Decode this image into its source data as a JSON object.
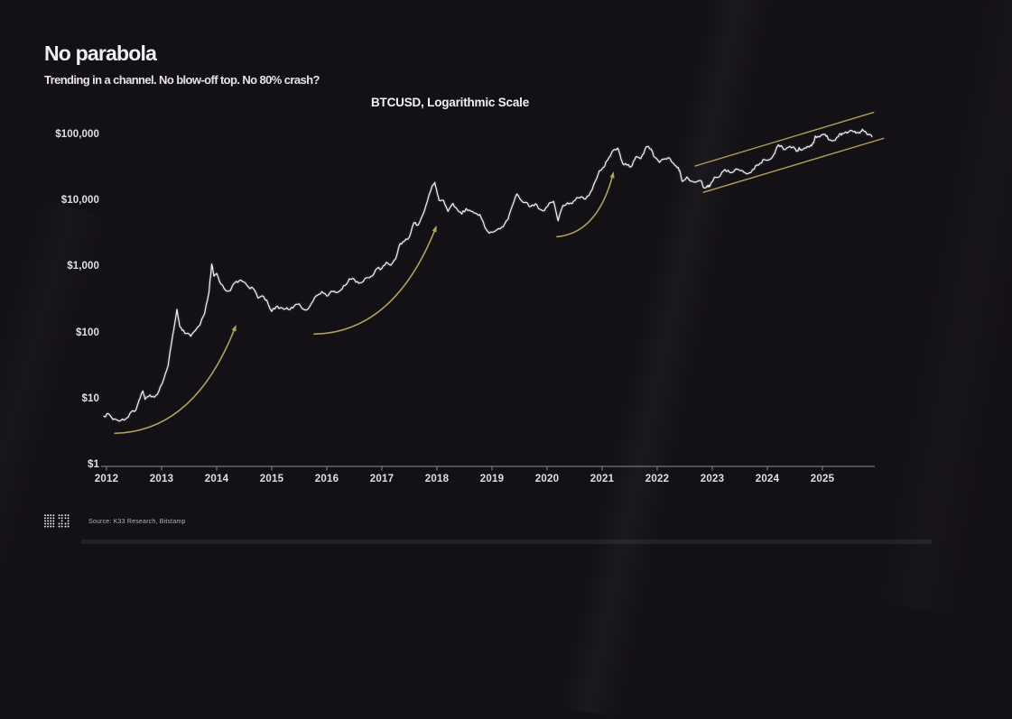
{
  "slide": {
    "title": "No parabola",
    "subtitle": "Trending in a channel. No blow-off top. No 80% crash?",
    "source": "Source: K33 Research, Bitstamp"
  },
  "colors": {
    "background": "#131016",
    "accent_gold": "#b2a158",
    "price_line": "#f4f2f4",
    "axis": "#8f8c90",
    "label_text": "#e2dfe2"
  },
  "chart_data": {
    "type": "line",
    "title": "BTCUSD, Logarithmic Scale",
    "xlabel": "",
    "ylabel": "",
    "x_axis": {
      "ticks": [
        2012,
        2013,
        2014,
        2015,
        2016,
        2017,
        2018,
        2019,
        2020,
        2021,
        2022,
        2023,
        2024,
        2025
      ],
      "range": [
        2011.9,
        2025.95
      ]
    },
    "y_axis": {
      "scale": "log",
      "tick_values": [
        1,
        10,
        100,
        1000,
        10000,
        100000
      ],
      "tick_labels": [
        "$1",
        "$10",
        "$100",
        "$1,000",
        "$10,000",
        "$100,000"
      ],
      "range": [
        1,
        160000
      ]
    },
    "grid": false,
    "legend": "none",
    "series": [
      {
        "name": "BTCUSD",
        "points": [
          [
            2011.95,
            5.6
          ],
          [
            2012.04,
            6.1
          ],
          [
            2012.12,
            5.0
          ],
          [
            2012.2,
            4.9
          ],
          [
            2012.29,
            5.1
          ],
          [
            2012.37,
            5.3
          ],
          [
            2012.45,
            6.6
          ],
          [
            2012.53,
            6.9
          ],
          [
            2012.58,
            9.2
          ],
          [
            2012.62,
            11.2
          ],
          [
            2012.66,
            13.6
          ],
          [
            2012.7,
            10.1
          ],
          [
            2012.79,
            11.8
          ],
          [
            2012.87,
            10.9
          ],
          [
            2012.95,
            13.5
          ],
          [
            2013.04,
            20.4
          ],
          [
            2013.12,
            33
          ],
          [
            2013.2,
            92
          ],
          [
            2013.28,
            233
          ],
          [
            2013.33,
            128
          ],
          [
            2013.37,
            112
          ],
          [
            2013.45,
            100
          ],
          [
            2013.53,
            91
          ],
          [
            2013.62,
            113
          ],
          [
            2013.7,
            137
          ],
          [
            2013.78,
            198
          ],
          [
            2013.86,
            420
          ],
          [
            2013.91,
            1120
          ],
          [
            2013.95,
            735
          ],
          [
            2014.0,
            808
          ],
          [
            2014.08,
            556
          ],
          [
            2014.16,
            450
          ],
          [
            2014.25,
            447
          ],
          [
            2014.33,
            585
          ],
          [
            2014.41,
            632
          ],
          [
            2014.5,
            598
          ],
          [
            2014.58,
            503
          ],
          [
            2014.66,
            482
          ],
          [
            2014.75,
            342
          ],
          [
            2014.83,
            372
          ],
          [
            2014.91,
            320
          ],
          [
            2015.0,
            216
          ],
          [
            2015.08,
            254
          ],
          [
            2015.16,
            246
          ],
          [
            2015.25,
            236
          ],
          [
            2015.33,
            229
          ],
          [
            2015.41,
            262
          ],
          [
            2015.5,
            281
          ],
          [
            2015.58,
            231
          ],
          [
            2015.66,
            236
          ],
          [
            2015.75,
            311
          ],
          [
            2015.83,
            377
          ],
          [
            2015.91,
            431
          ],
          [
            2016.0,
            368
          ],
          [
            2016.08,
            437
          ],
          [
            2016.16,
            416
          ],
          [
            2016.25,
            452
          ],
          [
            2016.33,
            531
          ],
          [
            2016.41,
            672
          ],
          [
            2016.5,
            657
          ],
          [
            2016.58,
            573
          ],
          [
            2016.66,
            612
          ],
          [
            2016.75,
            699
          ],
          [
            2016.83,
            744
          ],
          [
            2016.91,
            958
          ],
          [
            2017.0,
            968
          ],
          [
            2017.08,
            1190
          ],
          [
            2017.16,
            1078
          ],
          [
            2017.25,
            1348
          ],
          [
            2017.33,
            2290
          ],
          [
            2017.41,
            2478
          ],
          [
            2017.5,
            2874
          ],
          [
            2017.58,
            4703
          ],
          [
            2017.66,
            4360
          ],
          [
            2017.75,
            6450
          ],
          [
            2017.83,
            10200
          ],
          [
            2017.91,
            16700
          ],
          [
            2017.96,
            19300
          ],
          [
            2018.0,
            13850
          ],
          [
            2018.04,
            10250
          ],
          [
            2018.12,
            10300
          ],
          [
            2018.2,
            7020
          ],
          [
            2018.29,
            9240
          ],
          [
            2018.37,
            7500
          ],
          [
            2018.45,
            6400
          ],
          [
            2018.53,
            7730
          ],
          [
            2018.62,
            7010
          ],
          [
            2018.7,
            6590
          ],
          [
            2018.78,
            6300
          ],
          [
            2018.87,
            4020
          ],
          [
            2018.95,
            3290
          ],
          [
            2019.04,
            3460
          ],
          [
            2019.12,
            3850
          ],
          [
            2019.2,
            4100
          ],
          [
            2019.29,
            5320
          ],
          [
            2019.37,
            8550
          ],
          [
            2019.45,
            12900
          ],
          [
            2019.54,
            10080
          ],
          [
            2019.62,
            9590
          ],
          [
            2019.7,
            8300
          ],
          [
            2019.79,
            9150
          ],
          [
            2019.87,
            7550
          ],
          [
            2019.95,
            7190
          ],
          [
            2020.04,
            9350
          ],
          [
            2020.12,
            9900
          ],
          [
            2020.2,
            5050
          ],
          [
            2020.29,
            8650
          ],
          [
            2020.37,
            9440
          ],
          [
            2020.45,
            9140
          ],
          [
            2020.54,
            11350
          ],
          [
            2020.62,
            11650
          ],
          [
            2020.7,
            10780
          ],
          [
            2020.79,
            13800
          ],
          [
            2020.87,
            19700
          ],
          [
            2020.95,
            28950
          ],
          [
            2021.04,
            33100
          ],
          [
            2021.08,
            40300
          ],
          [
            2021.12,
            45140
          ],
          [
            2021.2,
            58800
          ],
          [
            2021.28,
            63500
          ],
          [
            2021.33,
            49000
          ],
          [
            2021.37,
            37300
          ],
          [
            2021.45,
            35040
          ],
          [
            2021.53,
            33500
          ],
          [
            2021.58,
            41500
          ],
          [
            2021.62,
            47100
          ],
          [
            2021.7,
            43790
          ],
          [
            2021.78,
            61300
          ],
          [
            2021.84,
            67500
          ],
          [
            2021.91,
            57000
          ],
          [
            2021.95,
            46200
          ],
          [
            2022.04,
            38480
          ],
          [
            2022.12,
            43190
          ],
          [
            2022.2,
            45540
          ],
          [
            2022.29,
            37710
          ],
          [
            2022.37,
            31790
          ],
          [
            2022.41,
            29000
          ],
          [
            2022.45,
            19940
          ],
          [
            2022.54,
            23290
          ],
          [
            2022.62,
            20050
          ],
          [
            2022.7,
            19420
          ],
          [
            2022.79,
            20490
          ],
          [
            2022.84,
            16000
          ],
          [
            2022.91,
            17160
          ],
          [
            2022.95,
            16540
          ],
          [
            2023.04,
            23130
          ],
          [
            2023.12,
            23140
          ],
          [
            2023.2,
            28470
          ],
          [
            2023.29,
            29230
          ],
          [
            2023.37,
            27220
          ],
          [
            2023.45,
            30470
          ],
          [
            2023.54,
            29230
          ],
          [
            2023.62,
            25930
          ],
          [
            2023.7,
            26960
          ],
          [
            2023.79,
            34650
          ],
          [
            2023.87,
            37710
          ],
          [
            2023.95,
            42260
          ],
          [
            2024.04,
            42580
          ],
          [
            2024.12,
            51200
          ],
          [
            2024.16,
            61200
          ],
          [
            2024.2,
            71330
          ],
          [
            2024.28,
            63840
          ],
          [
            2024.33,
            60640
          ],
          [
            2024.41,
            67490
          ],
          [
            2024.5,
            62680
          ],
          [
            2024.54,
            57500
          ],
          [
            2024.58,
            64620
          ],
          [
            2024.62,
            58970
          ],
          [
            2024.7,
            63330
          ],
          [
            2024.79,
            70220
          ],
          [
            2024.84,
            76300
          ],
          [
            2024.87,
            96400
          ],
          [
            2024.95,
            93430
          ],
          [
            2025.04,
            102400
          ],
          [
            2025.08,
            97700
          ],
          [
            2025.12,
            84350
          ],
          [
            2025.2,
            82550
          ],
          [
            2025.29,
            94210
          ],
          [
            2025.33,
            103900
          ],
          [
            2025.37,
            104600
          ],
          [
            2025.45,
            107140
          ],
          [
            2025.54,
            115800
          ],
          [
            2025.58,
            113600
          ],
          [
            2025.62,
            108240
          ],
          [
            2025.7,
            114000
          ],
          [
            2025.74,
            118000
          ],
          [
            2025.79,
            110100
          ],
          [
            2025.84,
            103000
          ],
          [
            2025.9,
            94000
          ]
        ]
      }
    ],
    "annotations": {
      "parabola_arrows": [
        {
          "start": [
            2012.15,
            3.1
          ],
          "control": [
            2013.6,
            3.3
          ],
          "end": [
            2014.34,
            126
          ]
        },
        {
          "start": [
            2015.77,
            98
          ],
          "control": [
            2017.23,
            104
          ],
          "end": [
            2017.98,
            3980
          ]
        },
        {
          "start": [
            2020.18,
            2900
          ],
          "control": [
            2020.92,
            3300
          ],
          "end": [
            2021.2,
            26000
          ]
        }
      ],
      "channel": {
        "upper": [
          [
            2022.69,
            34000
          ],
          [
            2025.93,
            220000
          ]
        ],
        "lower": [
          [
            2022.84,
            13600
          ],
          [
            2026.11,
            89000
          ]
        ]
      }
    }
  }
}
